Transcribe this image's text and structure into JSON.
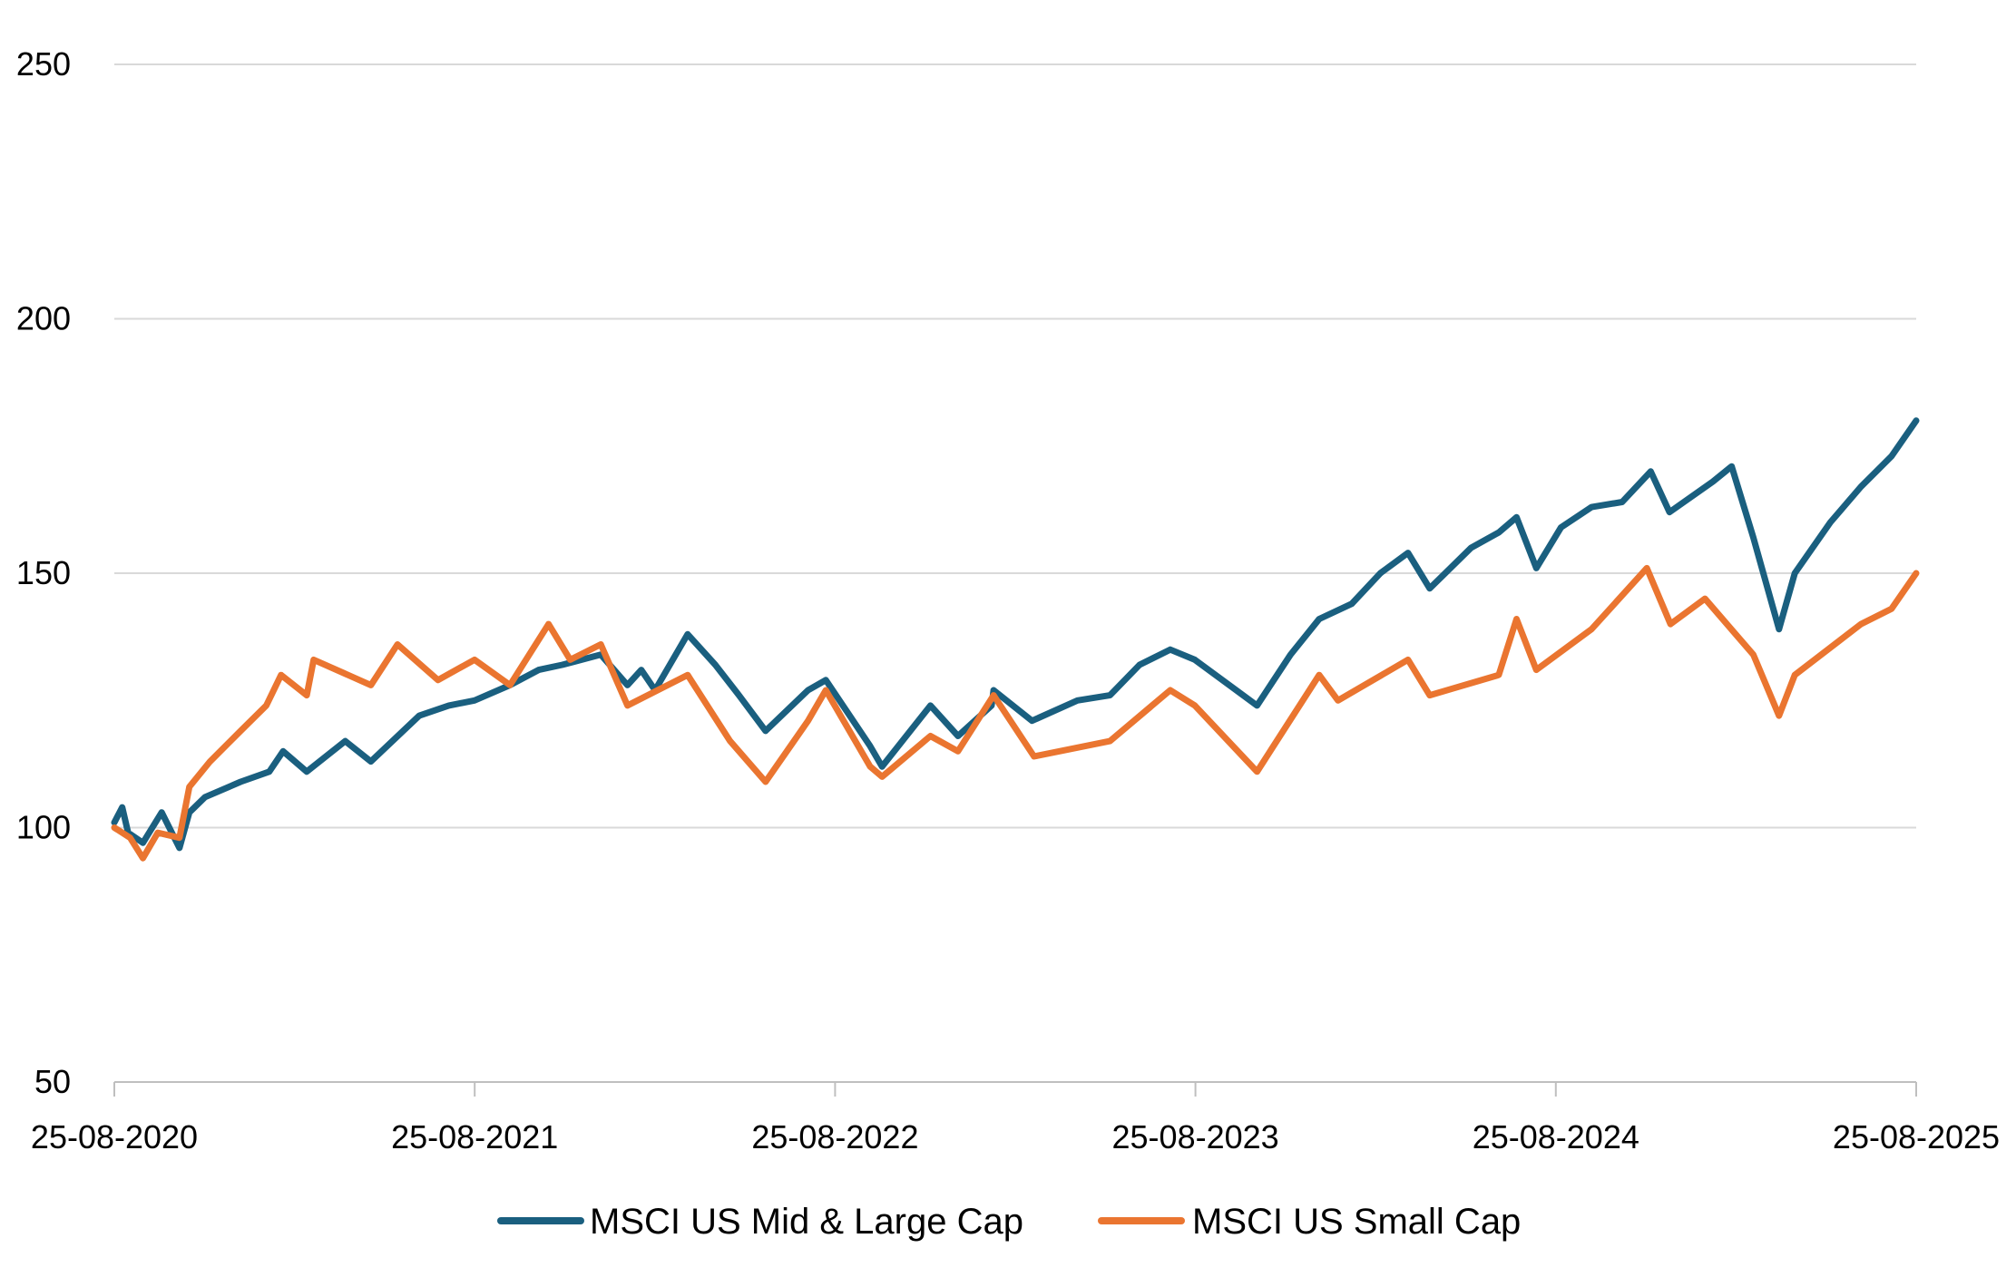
{
  "chart_data": {
    "type": "line",
    "title": "",
    "xlabel": "",
    "ylabel": "",
    "x_ticks": [
      "25-08-2020",
      "25-08-2021",
      "25-08-2022",
      "25-08-2023",
      "25-08-2024",
      "25-08-2025"
    ],
    "y_ticks": [
      "50",
      "100",
      "150",
      "200",
      "250"
    ],
    "ylim": [
      50,
      250
    ],
    "xlim": [
      "2020-08-25",
      "2025-08-25"
    ],
    "grid": "horizontal",
    "legend_position": "bottom",
    "colors": {
      "mid_large": "#1a5f7f",
      "small": "#ea7530",
      "grid": "#d9d9d9",
      "axis": "#bfbfbf"
    },
    "series": [
      {
        "name": "MSCI US Mid & Large Cap",
        "color": "#1a5f7f",
        "points": [
          [
            "2020-08-25",
            101
          ],
          [
            "2020-09-02",
            104
          ],
          [
            "2020-09-08",
            99
          ],
          [
            "2020-09-23",
            97
          ],
          [
            "2020-10-12",
            103
          ],
          [
            "2020-10-30",
            96
          ],
          [
            "2020-11-09",
            103
          ],
          [
            "2020-11-25",
            106
          ],
          [
            "2020-12-31",
            109
          ],
          [
            "2021-01-29",
            111
          ],
          [
            "2021-02-12",
            115
          ],
          [
            "2021-03-08",
            111
          ],
          [
            "2021-04-16",
            117
          ],
          [
            "2021-05-12",
            113
          ],
          [
            "2021-06-30",
            122
          ],
          [
            "2021-07-30",
            124
          ],
          [
            "2021-08-25",
            125
          ],
          [
            "2021-09-30",
            128
          ],
          [
            "2021-10-29",
            131
          ],
          [
            "2021-11-22",
            132
          ],
          [
            "2021-12-31",
            134
          ],
          [
            "2022-01-27",
            128
          ],
          [
            "2022-02-10",
            131
          ],
          [
            "2022-02-24",
            127
          ],
          [
            "2022-03-29",
            138
          ],
          [
            "2022-04-26",
            132
          ],
          [
            "2022-05-20",
            126
          ],
          [
            "2022-06-16",
            119
          ],
          [
            "2022-07-29",
            127
          ],
          [
            "2022-08-16",
            129
          ],
          [
            "2022-09-30",
            116
          ],
          [
            "2022-10-12",
            112
          ],
          [
            "2022-11-30",
            124
          ],
          [
            "2022-12-28",
            118
          ],
          [
            "2023-01-31",
            124
          ],
          [
            "2023-02-02",
            127
          ],
          [
            "2023-03-13",
            121
          ],
          [
            "2023-04-28",
            125
          ],
          [
            "2023-05-31",
            126
          ],
          [
            "2023-06-30",
            132
          ],
          [
            "2023-07-31",
            135
          ],
          [
            "2023-08-25",
            133
          ],
          [
            "2023-10-27",
            124
          ],
          [
            "2023-11-30",
            134
          ],
          [
            "2023-12-29",
            141
          ],
          [
            "2024-01-31",
            144
          ],
          [
            "2024-02-29",
            150
          ],
          [
            "2024-03-28",
            154
          ],
          [
            "2024-04-19",
            147
          ],
          [
            "2024-05-31",
            155
          ],
          [
            "2024-06-28",
            158
          ],
          [
            "2024-07-16",
            161
          ],
          [
            "2024-08-05",
            151
          ],
          [
            "2024-08-30",
            159
          ],
          [
            "2024-09-30",
            163
          ],
          [
            "2024-10-31",
            164
          ],
          [
            "2024-11-29",
            170
          ],
          [
            "2024-12-18",
            162
          ],
          [
            "2025-01-31",
            168
          ],
          [
            "2025-02-19",
            171
          ],
          [
            "2025-03-13",
            157
          ],
          [
            "2025-04-08",
            139
          ],
          [
            "2025-04-24",
            150
          ],
          [
            "2025-05-30",
            160
          ],
          [
            "2025-06-30",
            167
          ],
          [
            "2025-07-31",
            173
          ],
          [
            "2025-08-25",
            180
          ]
        ]
      },
      {
        "name": "MSCI US Small Cap",
        "color": "#ea7530",
        "points": [
          [
            "2020-08-25",
            100
          ],
          [
            "2020-09-10",
            98
          ],
          [
            "2020-09-23",
            94
          ],
          [
            "2020-10-08",
            99
          ],
          [
            "2020-10-30",
            98
          ],
          [
            "2020-11-09",
            108
          ],
          [
            "2020-11-30",
            113
          ],
          [
            "2020-12-31",
            119
          ],
          [
            "2021-01-26",
            124
          ],
          [
            "2021-02-10",
            130
          ],
          [
            "2021-03-08",
            126
          ],
          [
            "2021-03-15",
            133
          ],
          [
            "2021-05-12",
            128
          ],
          [
            "2021-06-08",
            136
          ],
          [
            "2021-07-19",
            129
          ],
          [
            "2021-08-25",
            133
          ],
          [
            "2021-09-30",
            128
          ],
          [
            "2021-11-08",
            140
          ],
          [
            "2021-11-30",
            133
          ],
          [
            "2021-12-31",
            136
          ],
          [
            "2022-01-27",
            124
          ],
          [
            "2022-03-29",
            130
          ],
          [
            "2022-05-11",
            117
          ],
          [
            "2022-06-16",
            109
          ],
          [
            "2022-07-29",
            121
          ],
          [
            "2022-08-16",
            127
          ],
          [
            "2022-09-30",
            112
          ],
          [
            "2022-10-12",
            110
          ],
          [
            "2022-11-30",
            118
          ],
          [
            "2022-12-28",
            115
          ],
          [
            "2023-02-02",
            126
          ],
          [
            "2023-03-15",
            114
          ],
          [
            "2023-05-31",
            117
          ],
          [
            "2023-07-31",
            127
          ],
          [
            "2023-08-25",
            124
          ],
          [
            "2023-10-27",
            111
          ],
          [
            "2023-12-29",
            130
          ],
          [
            "2024-01-17",
            125
          ],
          [
            "2024-03-28",
            133
          ],
          [
            "2024-04-19",
            126
          ],
          [
            "2024-06-28",
            130
          ],
          [
            "2024-07-16",
            141
          ],
          [
            "2024-08-05",
            131
          ],
          [
            "2024-09-30",
            139
          ],
          [
            "2024-11-25",
            151
          ],
          [
            "2024-12-19",
            140
          ],
          [
            "2025-01-23",
            145
          ],
          [
            "2025-03-13",
            134
          ],
          [
            "2025-04-08",
            122
          ],
          [
            "2025-04-24",
            130
          ],
          [
            "2025-06-30",
            140
          ],
          [
            "2025-07-31",
            143
          ],
          [
            "2025-08-25",
            150
          ]
        ]
      }
    ],
    "legend": [
      "MSCI US Mid & Large Cap",
      "MSCI US Small Cap"
    ]
  }
}
